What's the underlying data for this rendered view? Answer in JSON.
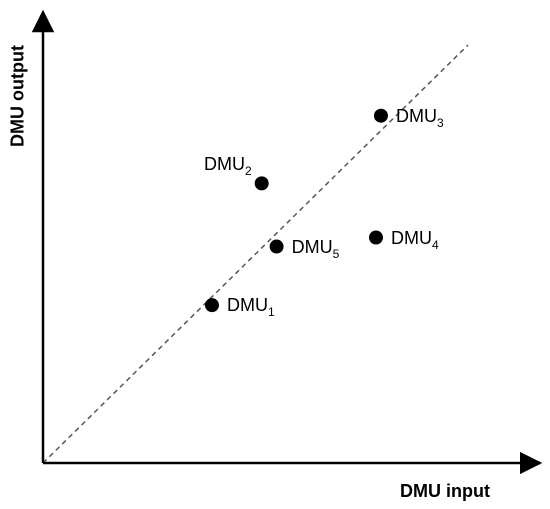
{
  "axes": {
    "x_label": "DMU input",
    "y_label": "DMU output"
  },
  "frontier": {
    "style": "dashed",
    "color": "#555555"
  },
  "points": [
    {
      "name": "DMU",
      "sub": "1",
      "x": 0.34,
      "y": 0.35,
      "label_side": "right"
    },
    {
      "name": "DMU",
      "sub": "2",
      "x": 0.44,
      "y": 0.62,
      "label_side": "left"
    },
    {
      "name": "DMU",
      "sub": "3",
      "x": 0.68,
      "y": 0.77,
      "label_side": "right"
    },
    {
      "name": "DMU",
      "sub": "4",
      "x": 0.67,
      "y": 0.5,
      "label_side": "right"
    },
    {
      "name": "DMU",
      "sub": "5",
      "x": 0.47,
      "y": 0.48,
      "label_side": "right"
    }
  ],
  "colors": {
    "axis": "#000000",
    "point": "#000000",
    "frontier": "#555555"
  }
}
